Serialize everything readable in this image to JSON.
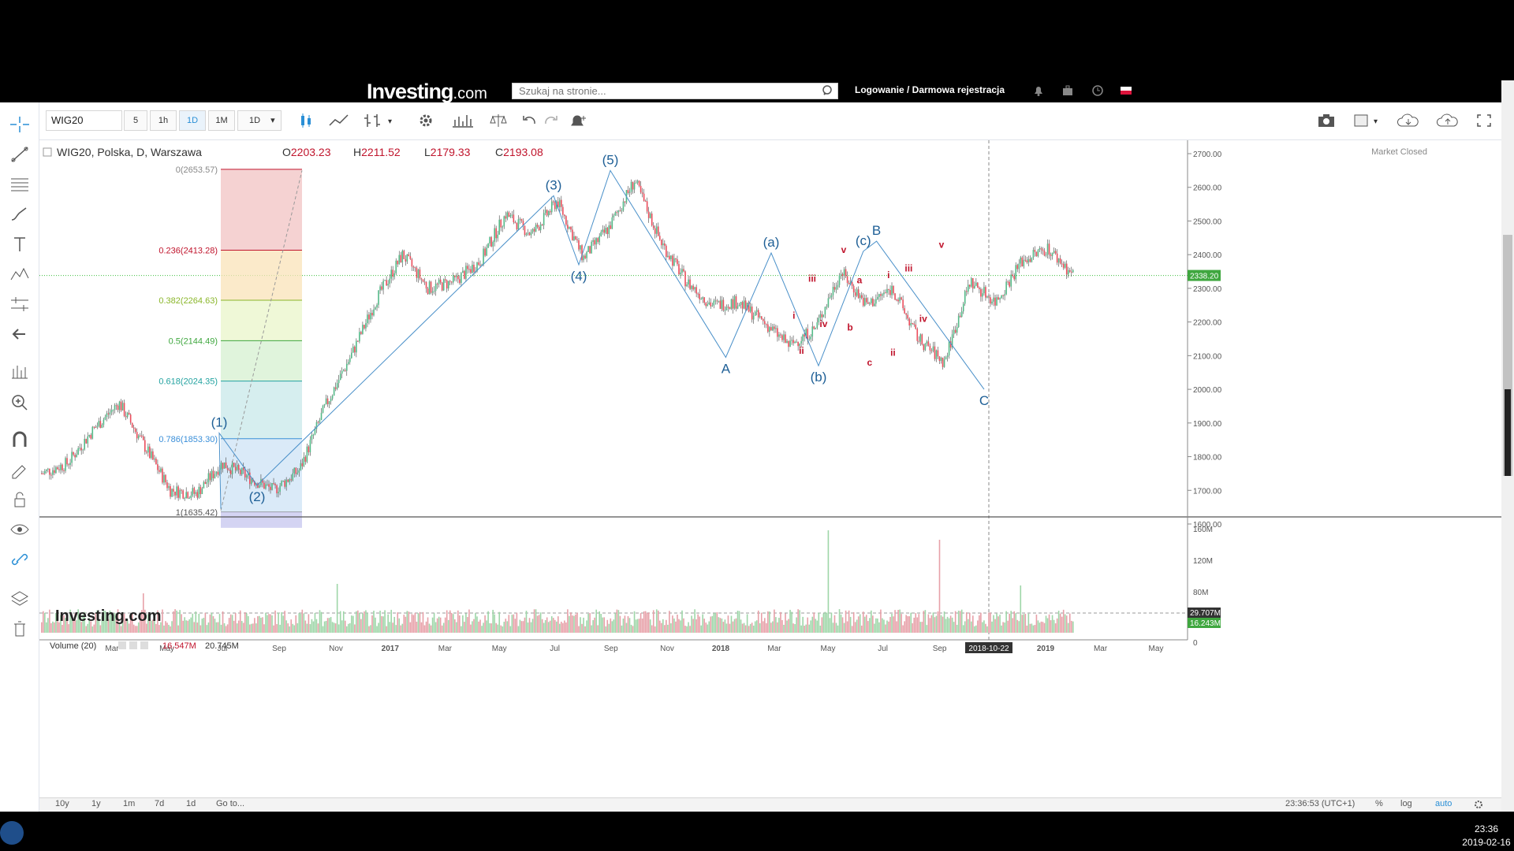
{
  "header": {
    "logo_main": "Investing",
    "logo_suffix": ".com",
    "search_placeholder": "Szukaj na stronie...",
    "login_text": "Logowanie / Darmowa rejestracja",
    "flag": "pl-flag-icon",
    "icons": [
      "search-icon",
      "bell-icon",
      "briefcase-icon",
      "clock-icon"
    ]
  },
  "toolbar": {
    "symbol": "WIG20",
    "intervals": [
      "5",
      "1h",
      "1D",
      "1M",
      "1D"
    ],
    "active_interval": "1D",
    "icons": [
      "candles-icon",
      "indicators-icon",
      "compare-icon",
      "settings-icon",
      "bars-icon",
      "scales-icon",
      "undo-icon",
      "redo-icon",
      "alert-icon",
      "camera-icon",
      "layout-icon",
      "cloud-load-icon",
      "cloud-save-icon",
      "fullscreen-icon"
    ]
  },
  "left_tools": [
    "crosshair-icon",
    "trendline-icon",
    "fib-icon",
    "brush-icon",
    "text-icon",
    "pattern-icon",
    "measure-icon",
    "back-arrow-icon",
    "ruler-icon",
    "zoom-icon",
    "magnet-icon",
    "lock-draw-icon",
    "unlock-icon",
    "eye-icon",
    "link-icon",
    "layers-icon",
    "trash-icon"
  ],
  "legend": {
    "title": "WIG20, Polska, D, Warszawa",
    "o_label": "O",
    "o": "2203.23",
    "h_label": "H",
    "h": "2211.52",
    "l_label": "L",
    "l": "2179.33",
    "c_label": "C",
    "c": "2193.08",
    "market_status": "Market Closed",
    "watermark": "Investing.com"
  },
  "volume_legend": {
    "label": "Volume (20)",
    "v1": "16.547M",
    "v2": "20.745M"
  },
  "price_tag": "2338.20",
  "volume_tags": [
    "29.707M",
    "16.243M"
  ],
  "crosshair_date": "2018-10-22",
  "bottom": {
    "ranges": [
      "10y",
      "1y",
      "1m",
      "7d",
      "1d",
      "Go to..."
    ],
    "time": "23:36:53 (UTC+1)",
    "right": [
      "%",
      "log",
      "auto"
    ]
  },
  "taskbar": {
    "time": "23:36",
    "date": "2019-02-16"
  },
  "colors": {
    "up": "#53b987",
    "down": "#eb4d5c",
    "wave": "#1e6fb0",
    "sub": "#c0142c",
    "fib_line": "#3a8fd9"
  },
  "chart_data": {
    "type": "candlestick",
    "price_axis": {
      "min": 1600,
      "max": 2700,
      "ticks": [
        "2700.00",
        "2600.00",
        "2500.00",
        "2400.00",
        "2300.00",
        "2200.00",
        "2100.00",
        "2000.00",
        "1900.00",
        "1800.00",
        "1700.00",
        "1600.00"
      ]
    },
    "volume_axis": {
      "ticks": [
        "160M",
        "120M",
        "80M",
        "40M",
        "0"
      ]
    },
    "x_ticks": [
      "Mar",
      "May",
      "Jul",
      "Sep",
      "Nov",
      "2017",
      "Mar",
      "May",
      "Jul",
      "Sep",
      "Nov",
      "2018",
      "Mar",
      "May",
      "Jul",
      "Sep",
      "2018-10-22",
      "2019",
      "Mar",
      "May"
    ],
    "fibonacci": [
      {
        "label": "0(2653.57)",
        "value": 2653.57
      },
      {
        "label": "0.236(2413.28)",
        "value": 2413.28
      },
      {
        "label": "0.382(2264.63)",
        "value": 2264.63
      },
      {
        "label": "0.5(2144.49)",
        "value": 2144.49
      },
      {
        "label": "0.618(2024.35)",
        "value": 2024.35
      },
      {
        "label": "0.786(1853.30)",
        "value": 1853.3
      },
      {
        "label": "1(1635.42)",
        "value": 1635.42
      }
    ],
    "waves_major": [
      {
        "label": "(1)",
        "value": 1870
      },
      {
        "label": "(2)",
        "value": 1715
      },
      {
        "label": "(3)",
        "value": 2575
      },
      {
        "label": "(4)",
        "value": 2370
      },
      {
        "label": "(5)",
        "value": 2650
      },
      {
        "label": "A",
        "value": 2095
      },
      {
        "label": "(a)",
        "value": 2405
      },
      {
        "label": "(b)",
        "value": 2070
      },
      {
        "label": "(c)",
        "value": 2410
      },
      {
        "label": "B",
        "value": 2440
      },
      {
        "label": "C",
        "value": 2000
      }
    ],
    "waves_minor": [
      "i",
      "ii",
      "iii",
      "iv",
      "v",
      "a",
      "b",
      "c",
      "i",
      "ii",
      "iii",
      "iv",
      "v"
    ],
    "close_levels": [
      1750,
      1780,
      1880,
      1960,
      1830,
      1700,
      1690,
      1780,
      1740,
      1700,
      1760,
      1950,
      2100,
      2270,
      2400,
      2300,
      2320,
      2380,
      2520,
      2460,
      2560,
      2390,
      2480,
      2620,
      2440,
      2320,
      2250,
      2260,
      2200,
      2130,
      2180,
      2350,
      2250,
      2300,
      2150,
      2080,
      2320,
      2260,
      2380,
      2420,
      2340
    ]
  }
}
